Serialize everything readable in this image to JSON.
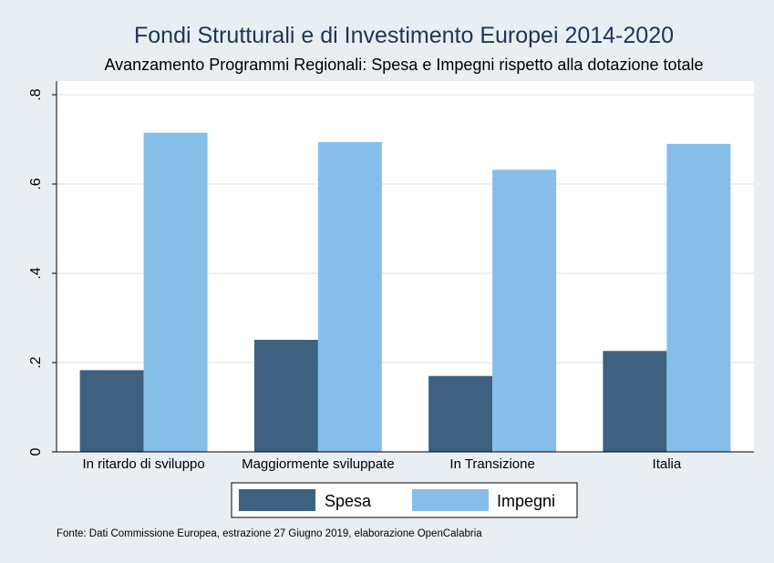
{
  "chart_data": {
    "type": "bar",
    "title": "Fondi Strutturali e di Investimento Europei 2014-2020",
    "subtitle": "Avanzamento Programmi Regionali: Spesa e Impegni rispetto alla dotazione totale",
    "categories": [
      "In ritardo di sviluppo",
      "Maggiormente sviluppate",
      "In Transizione",
      "Italia"
    ],
    "series": [
      {
        "name": "Spesa",
        "values": [
          0.183,
          0.251,
          0.17,
          0.226
        ],
        "color": "#3e6181"
      },
      {
        "name": "Impegni",
        "values": [
          0.715,
          0.694,
          0.632,
          0.69
        ],
        "color": "#85bfe9"
      }
    ],
    "ylim": [
      0,
      0.8
    ],
    "yticks": [
      0,
      0.2,
      0.4,
      0.6,
      0.8
    ],
    "ytick_labels": [
      "0",
      ".2",
      ".4",
      ".6",
      ".8"
    ],
    "grid": true,
    "legend_position": "bottom",
    "note": "Fonte: Dati Commissione Europea, estrazione 27 Giugno 2019, elaborazione OpenCalabria"
  }
}
